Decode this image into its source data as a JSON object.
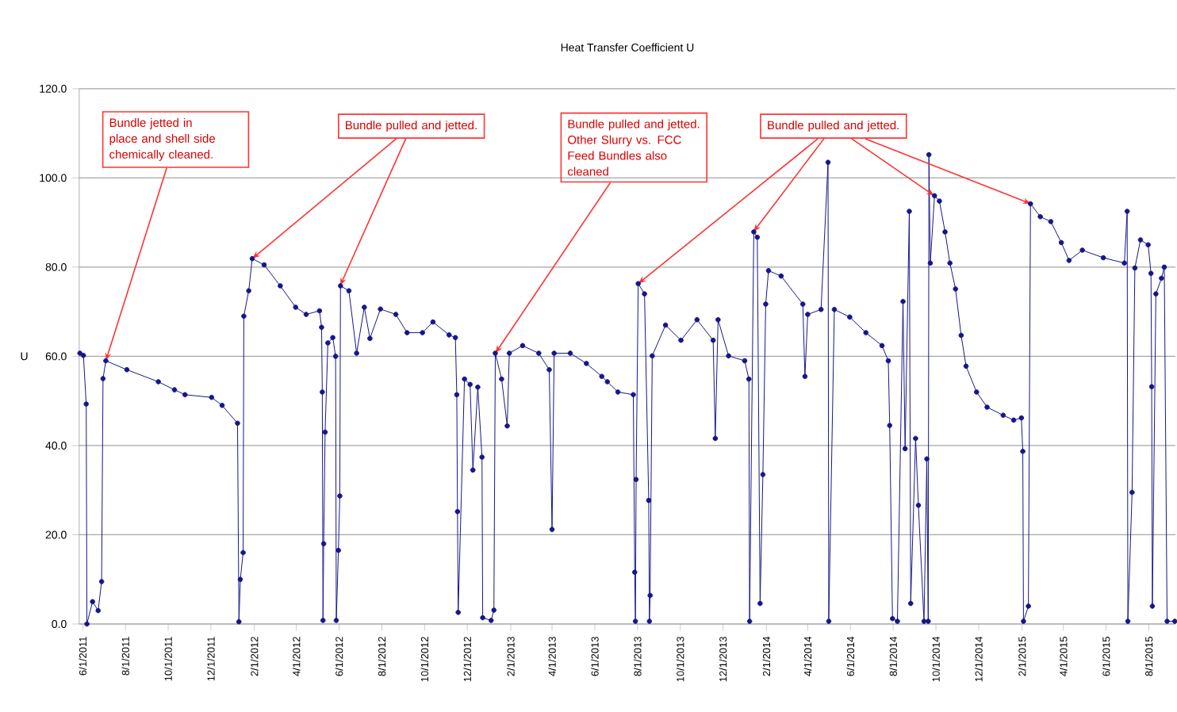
{
  "chart_data": {
    "type": "line",
    "title": "Heat Transfer Coefficient U",
    "ylabel": "U",
    "xlim": [
      "2011-05-27",
      "2015-09-08"
    ],
    "ylim": [
      0,
      120
    ],
    "yticks": [
      {
        "value": 0,
        "label": "0.0"
      },
      {
        "value": 20,
        "label": "20.0"
      },
      {
        "value": 40,
        "label": "40.0"
      },
      {
        "value": 60,
        "label": "60.0"
      },
      {
        "value": 80,
        "label": "80.0"
      },
      {
        "value": 100,
        "label": "100.0"
      },
      {
        "value": 120,
        "label": "120.0"
      }
    ],
    "xticks": [
      {
        "value": "2011-06-01",
        "label": "6/1/2011"
      },
      {
        "value": "2011-08-01",
        "label": "8/1/2011"
      },
      {
        "value": "2011-10-01",
        "label": "10/1/2011"
      },
      {
        "value": "2011-12-01",
        "label": "12/1/2011"
      },
      {
        "value": "2012-02-01",
        "label": "2/1/2012"
      },
      {
        "value": "2012-04-01",
        "label": "4/1/2012"
      },
      {
        "value": "2012-06-01",
        "label": "6/1/2012"
      },
      {
        "value": "2012-08-01",
        "label": "8/1/2012"
      },
      {
        "value": "2012-10-01",
        "label": "10/1/2012"
      },
      {
        "value": "2012-12-01",
        "label": "12/1/2012"
      },
      {
        "value": "2013-02-01",
        "label": "2/1/2013"
      },
      {
        "value": "2013-04-01",
        "label": "4/1/2013"
      },
      {
        "value": "2013-06-01",
        "label": "6/1/2013"
      },
      {
        "value": "2013-08-01",
        "label": "8/1/2013"
      },
      {
        "value": "2013-10-01",
        "label": "10/1/2013"
      },
      {
        "value": "2013-12-01",
        "label": "12/1/2013"
      },
      {
        "value": "2014-02-01",
        "label": "2/1/2014"
      },
      {
        "value": "2014-04-01",
        "label": "4/1/2014"
      },
      {
        "value": "2014-06-01",
        "label": "6/1/2014"
      },
      {
        "value": "2014-08-01",
        "label": "8/1/2014"
      },
      {
        "value": "2014-10-01",
        "label": "10/1/2014"
      },
      {
        "value": "2014-12-01",
        "label": "12/1/2014"
      },
      {
        "value": "2015-02-01",
        "label": "2/1/2015"
      },
      {
        "value": "2015-04-01",
        "label": "4/1/2015"
      },
      {
        "value": "2015-06-01",
        "label": "6/1/2015"
      },
      {
        "value": "2015-08-01",
        "label": "8/1/2015"
      }
    ],
    "grid": "y",
    "marker": "circle",
    "line_style": "solid",
    "series": [
      {
        "color": "#16168a",
        "x": [
          "2011-05-28",
          "2011-06-02",
          "2011-06-06",
          "2011-06-07",
          "2011-06-15",
          "2011-06-23",
          "2011-06-28",
          "2011-06-30",
          "2011-07-04",
          "2011-08-03",
          "2011-09-17",
          "2011-10-10",
          "2011-10-25",
          "2011-12-02",
          "2011-12-17",
          "2012-01-08",
          "2012-01-10",
          "2012-01-12",
          "2012-01-16",
          "2012-01-17",
          "2012-01-24",
          "2012-01-29",
          "2012-02-15",
          "2012-03-09",
          "2012-03-31",
          "2012-04-15",
          "2012-05-04",
          "2012-05-07",
          "2012-05-08",
          "2012-05-09",
          "2012-05-10",
          "2012-05-12",
          "2012-05-16",
          "2012-05-23",
          "2012-05-27",
          "2012-05-28",
          "2012-05-31",
          "2012-06-02",
          "2012-06-03",
          "2012-06-15",
          "2012-06-26",
          "2012-07-07",
          "2012-07-15",
          "2012-07-30",
          "2012-08-21",
          "2012-09-06",
          "2012-09-28",
          "2012-10-13",
          "2012-11-05",
          "2012-11-14",
          "2012-11-16",
          "2012-11-17",
          "2012-11-18",
          "2012-11-27",
          "2012-12-05",
          "2012-12-09",
          "2012-12-16",
          "2012-12-22",
          "2012-12-23",
          "2013-01-04",
          "2013-01-08",
          "2013-01-10",
          "2013-01-19",
          "2013-01-27",
          "2013-01-30",
          "2013-02-18",
          "2013-03-13",
          "2013-03-28",
          "2013-04-01",
          "2013-04-04",
          "2013-04-27",
          "2013-05-20",
          "2013-06-11",
          "2013-06-19",
          "2013-07-04",
          "2013-07-26",
          "2013-07-28",
          "2013-07-29",
          "2013-07-30",
          "2013-08-02",
          "2013-08-11",
          "2013-08-17",
          "2013-08-18",
          "2013-08-19",
          "2013-08-22",
          "2013-09-10",
          "2013-10-02",
          "2013-10-25",
          "2013-11-17",
          "2013-11-20",
          "2013-11-24",
          "2013-12-09",
          "2014-01-01",
          "2014-01-07",
          "2014-01-08",
          "2014-01-14",
          "2014-01-19",
          "2014-01-23",
          "2014-01-27",
          "2014-01-31",
          "2014-02-04",
          "2014-02-22",
          "2014-03-25",
          "2014-03-28",
          "2014-04-01",
          "2014-04-20",
          "2014-04-30",
          "2014-05-01",
          "2014-05-09",
          "2014-05-31",
          "2014-06-23",
          "2014-07-16",
          "2014-07-25",
          "2014-07-27",
          "2014-07-31",
          "2014-08-07",
          "2014-08-15",
          "2014-08-18",
          "2014-08-24",
          "2014-08-26",
          "2014-09-02",
          "2014-09-06",
          "2014-09-14",
          "2014-09-18",
          "2014-09-20",
          "2014-09-21",
          "2014-09-23",
          "2014-09-29",
          "2014-10-06",
          "2014-10-14",
          "2014-10-21",
          "2014-10-29",
          "2014-11-06",
          "2014-11-13",
          "2014-11-28",
          "2014-12-13",
          "2015-01-05",
          "2015-01-20",
          "2015-01-31",
          "2015-02-02",
          "2015-02-03",
          "2015-02-10",
          "2015-02-13",
          "2015-02-27",
          "2015-03-14",
          "2015-03-29",
          "2015-04-09",
          "2015-04-28",
          "2015-05-28",
          "2015-06-27",
          "2015-07-01",
          "2015-07-02",
          "2015-07-08",
          "2015-07-12",
          "2015-07-20",
          "2015-07-31",
          "2015-08-04",
          "2015-08-05",
          "2015-08-06",
          "2015-08-11",
          "2015-08-19",
          "2015-08-23",
          "2015-08-27",
          "2015-09-07"
        ],
        "values": [
          60.7,
          60.2,
          49.3,
          0,
          5,
          3,
          9.5,
          55,
          59,
          57,
          54.3,
          52.5,
          51.4,
          50.8,
          49,
          45,
          0.5,
          10,
          16,
          69,
          74.7,
          81.9,
          80.5,
          75.8,
          71,
          69.4,
          70.2,
          66.5,
          52,
          0.8,
          18,
          43,
          63,
          64.2,
          60,
          0.8,
          16.5,
          28.7,
          75.8,
          74.7,
          60.7,
          71,
          64,
          70.6,
          69.4,
          65.3,
          65.3,
          67.7,
          64.8,
          64.2,
          51.4,
          25.2,
          2.6,
          54.9,
          53.7,
          34.5,
          53.1,
          37.4,
          1.4,
          0.8,
          3.1,
          60.7,
          54.9,
          44.4,
          60.7,
          62.4,
          60.7,
          57,
          21.2,
          60.7,
          60.7,
          58.4,
          55.5,
          54.3,
          52,
          51.4,
          11.6,
          0.6,
          32.4,
          76.3,
          74,
          27.7,
          0.6,
          6.4,
          60.1,
          67,
          63.6,
          68.2,
          63.6,
          41.6,
          68.2,
          60.1,
          59,
          54.9,
          0.6,
          87.9,
          86.7,
          4.6,
          33.5,
          71.7,
          79.2,
          78,
          71.7,
          55.5,
          69.4,
          70.5,
          103.5,
          0.6,
          70.5,
          68.8,
          65.3,
          62.4,
          59,
          44.5,
          1.2,
          0.6,
          72.3,
          39.3,
          92.5,
          4.6,
          41.6,
          26.6,
          0.6,
          37,
          0.6,
          105.2,
          80.9,
          96,
          94.8,
          87.9,
          80.9,
          75.1,
          64.7,
          57.8,
          52,
          48.6,
          46.8,
          45.7,
          46.2,
          38.7,
          0.6,
          4,
          94.2,
          91.3,
          90.2,
          85.5,
          81.5,
          83.8,
          82.1,
          80.9,
          92.5,
          0.6,
          29.5,
          79.8,
          86.1,
          85,
          78.6,
          53.2,
          4,
          74,
          77.5,
          80,
          0.6,
          0.6
        ]
      }
    ],
    "annotations": [
      {
        "text": "Bundle jetted in place and shell side chemically cleaned.",
        "x": "2011-07-04",
        "y": 59
      },
      {
        "text": "Bundle pulled and jetted.",
        "x": "2012-01-29",
        "y": 81.9
      },
      {
        "text": "Bundle pulled and jetted. Other Slurry vs. FCC Feed Bundles also cleaned",
        "x": "2013-01-10",
        "y": 60.7
      },
      {
        "text": "Bundle pulled and jetted.",
        "x": "2013-08-02",
        "y": 76.3
      }
    ]
  }
}
